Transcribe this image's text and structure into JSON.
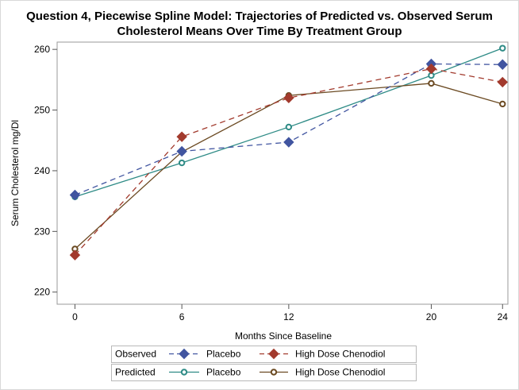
{
  "chart_data": {
    "type": "line",
    "title_line1": "Question 4, Piecewise Spline Model: Trajectories of Predicted vs. Observed Serum",
    "title_line2": "Cholesterol Means Over Time By Treatment Group",
    "xlabel": "Months Since Baseline",
    "ylabel": "Serum Cholesterol mg/Dl",
    "x_ticks": [
      0,
      6,
      12,
      20,
      24
    ],
    "y_ticks": [
      220,
      230,
      240,
      250,
      260
    ],
    "xlim": [
      -1,
      24.3
    ],
    "ylim": [
      218,
      261.2
    ],
    "grid": false,
    "x": [
      0,
      6,
      12,
      20,
      24
    ],
    "series": [
      {
        "group": "Observed",
        "name": "Placebo",
        "values": [
          236.0,
          243.2,
          244.7,
          257.6,
          257.5
        ],
        "color": "#4155a0",
        "line": "dashed",
        "marker": "diamond"
      },
      {
        "group": "Observed",
        "name": "High Dose Chenodiol",
        "values": [
          226.1,
          245.6,
          252.0,
          256.8,
          254.6
        ],
        "color": "#a23a2d",
        "line": "dashed",
        "marker": "diamond"
      },
      {
        "group": "Predicted",
        "name": "Placebo",
        "values": [
          235.7,
          241.3,
          247.2,
          255.7,
          260.2
        ],
        "color": "#2e8b86",
        "line": "solid",
        "marker": "circle"
      },
      {
        "group": "Predicted",
        "name": "High Dose Chenodiol",
        "values": [
          227.1,
          243.1,
          252.4,
          254.4,
          251.0
        ],
        "color": "#6b4a22",
        "line": "solid",
        "marker": "circle"
      }
    ],
    "legend": [
      {
        "group_label": "Observed",
        "items": [
          {
            "label": "Placebo",
            "series_index": 0
          },
          {
            "label": "High Dose Chenodiol",
            "series_index": 1
          }
        ]
      },
      {
        "group_label": "Predicted",
        "items": [
          {
            "label": "Placebo",
            "series_index": 2
          },
          {
            "label": "High Dose Chenodiol",
            "series_index": 3
          }
        ]
      }
    ]
  }
}
